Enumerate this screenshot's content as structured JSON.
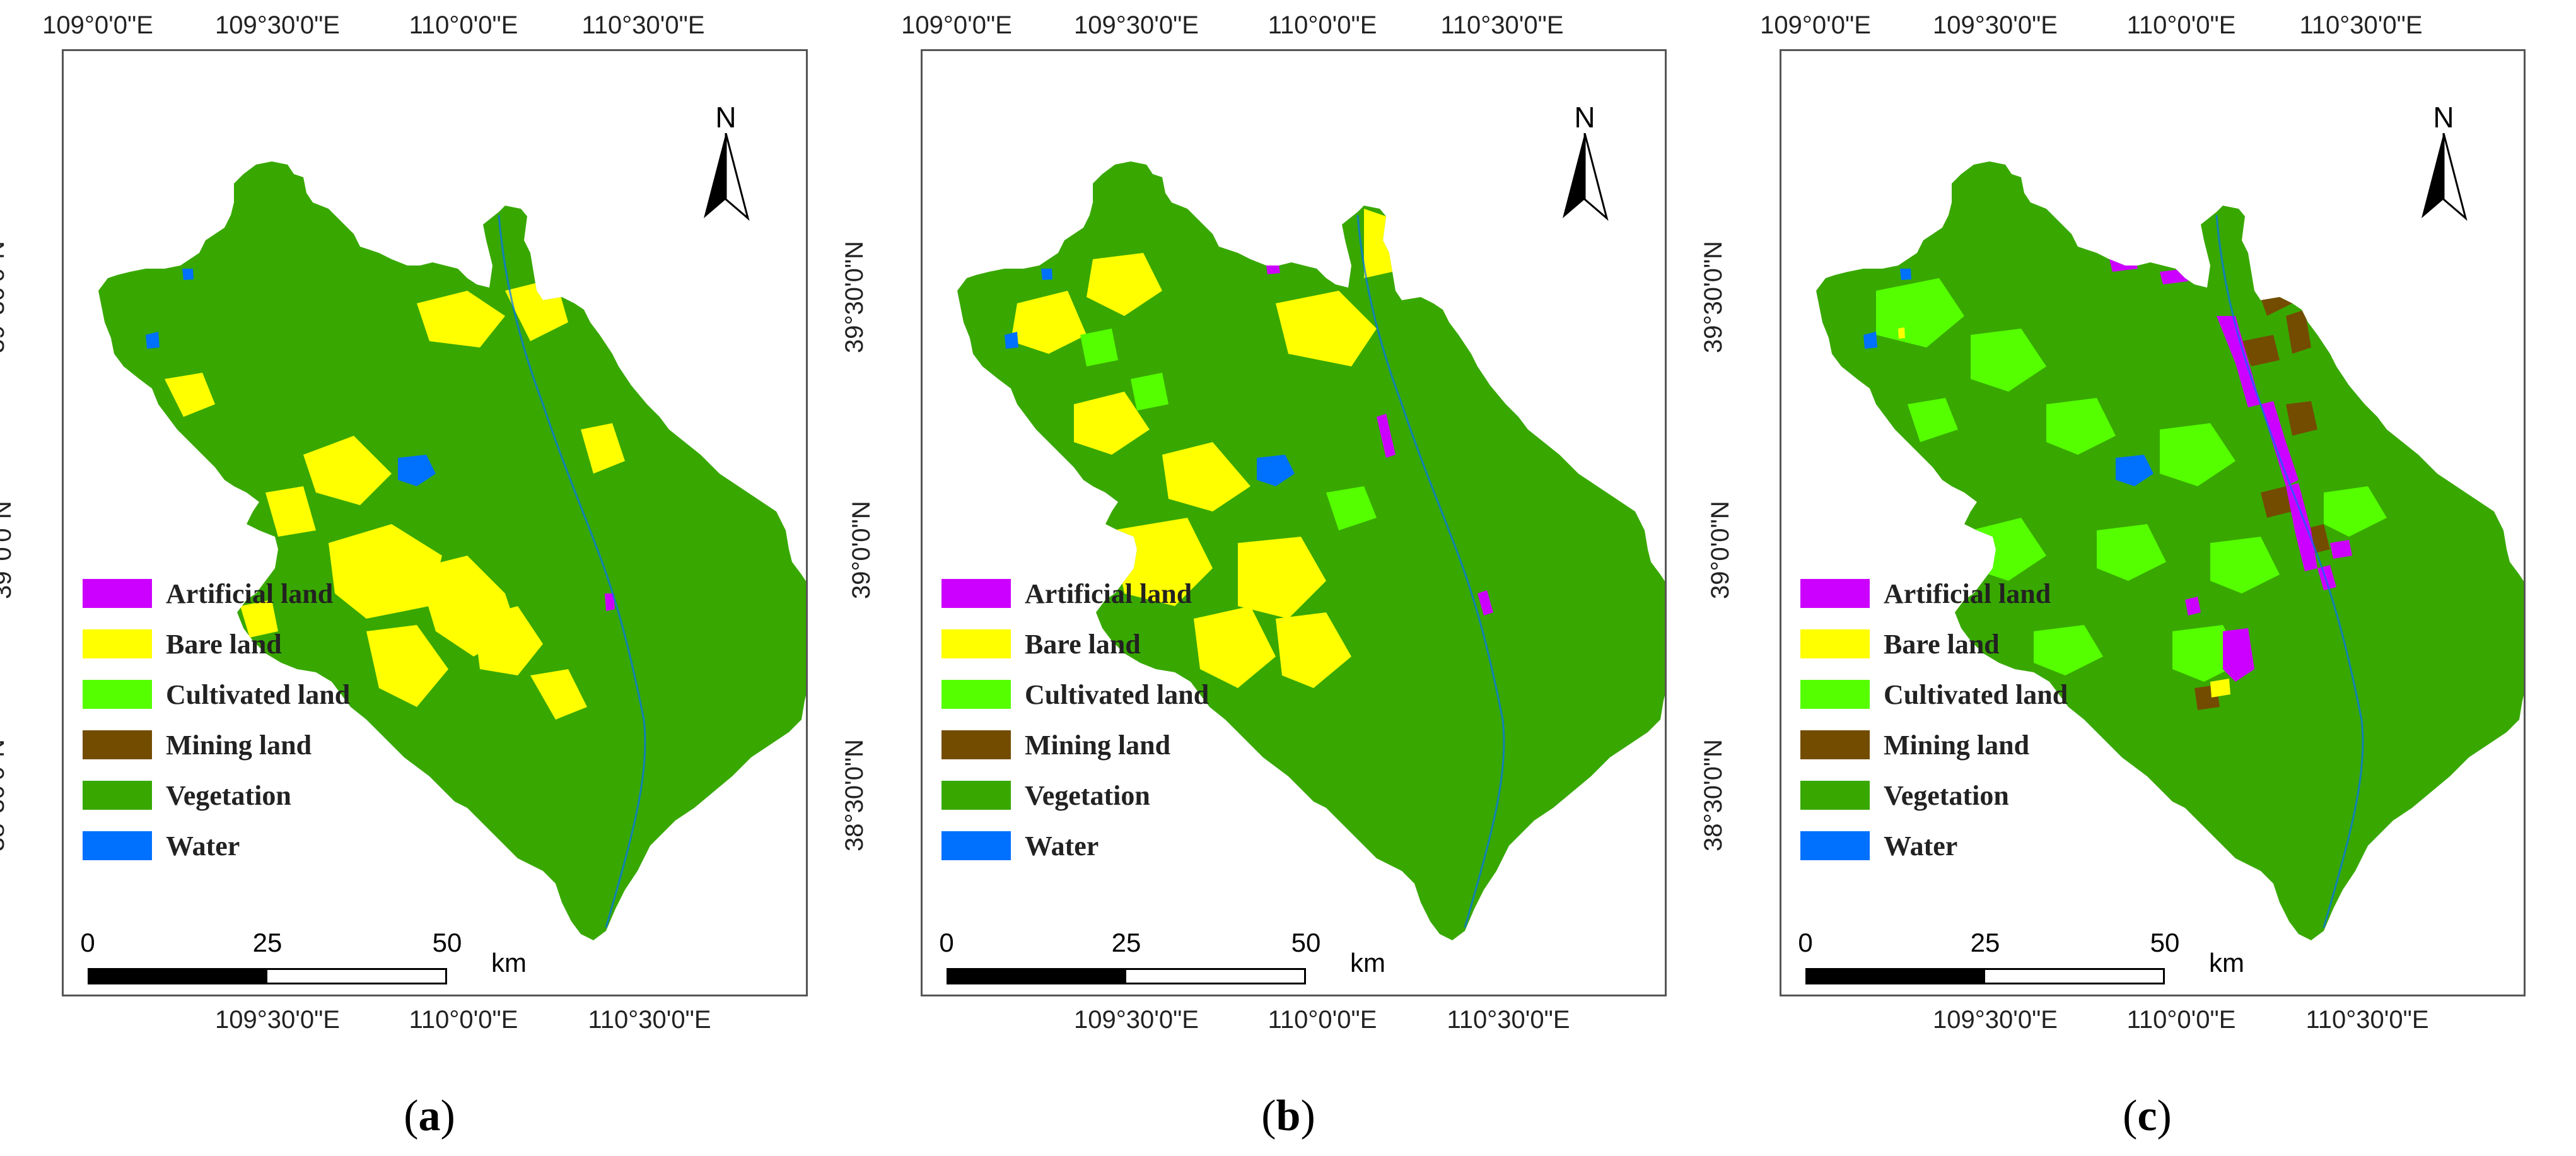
{
  "lon_labels_top": [
    "109°0'0\"E",
    "109°30'0\"E",
    "110°0'0\"E",
    "110°30'0\"E"
  ],
  "lon_labels_bottom": [
    "109°30'0\"E",
    "110°0'0\"E",
    "110°30'0\"E"
  ],
  "lat_labels": [
    "39°30'0\"N",
    "39°0'0\"N",
    "38°30'0\"N"
  ],
  "north_label": "N",
  "scale": {
    "ticks": [
      "0",
      "25",
      "50"
    ],
    "unit": "km"
  },
  "legend": [
    {
      "label": "Artificial land",
      "color": "#cc00ff"
    },
    {
      "label": "Bare land",
      "color": "#ffff00"
    },
    {
      "label": "Cultivated land",
      "color": "#55ff00"
    },
    {
      "label": "Mining land",
      "color": "#734c00"
    },
    {
      "label": "Vegetation",
      "color": "#38a800"
    },
    {
      "label": "Water",
      "color": "#0070ff"
    }
  ],
  "panels": [
    {
      "id": "a",
      "caption_open": "(",
      "caption_letter": "a",
      "caption_close": ")"
    },
    {
      "id": "b",
      "caption_open": "(",
      "caption_letter": "b",
      "caption_close": ")"
    },
    {
      "id": "c",
      "caption_open": "(",
      "caption_letter": "c",
      "caption_close": ")"
    }
  ]
}
